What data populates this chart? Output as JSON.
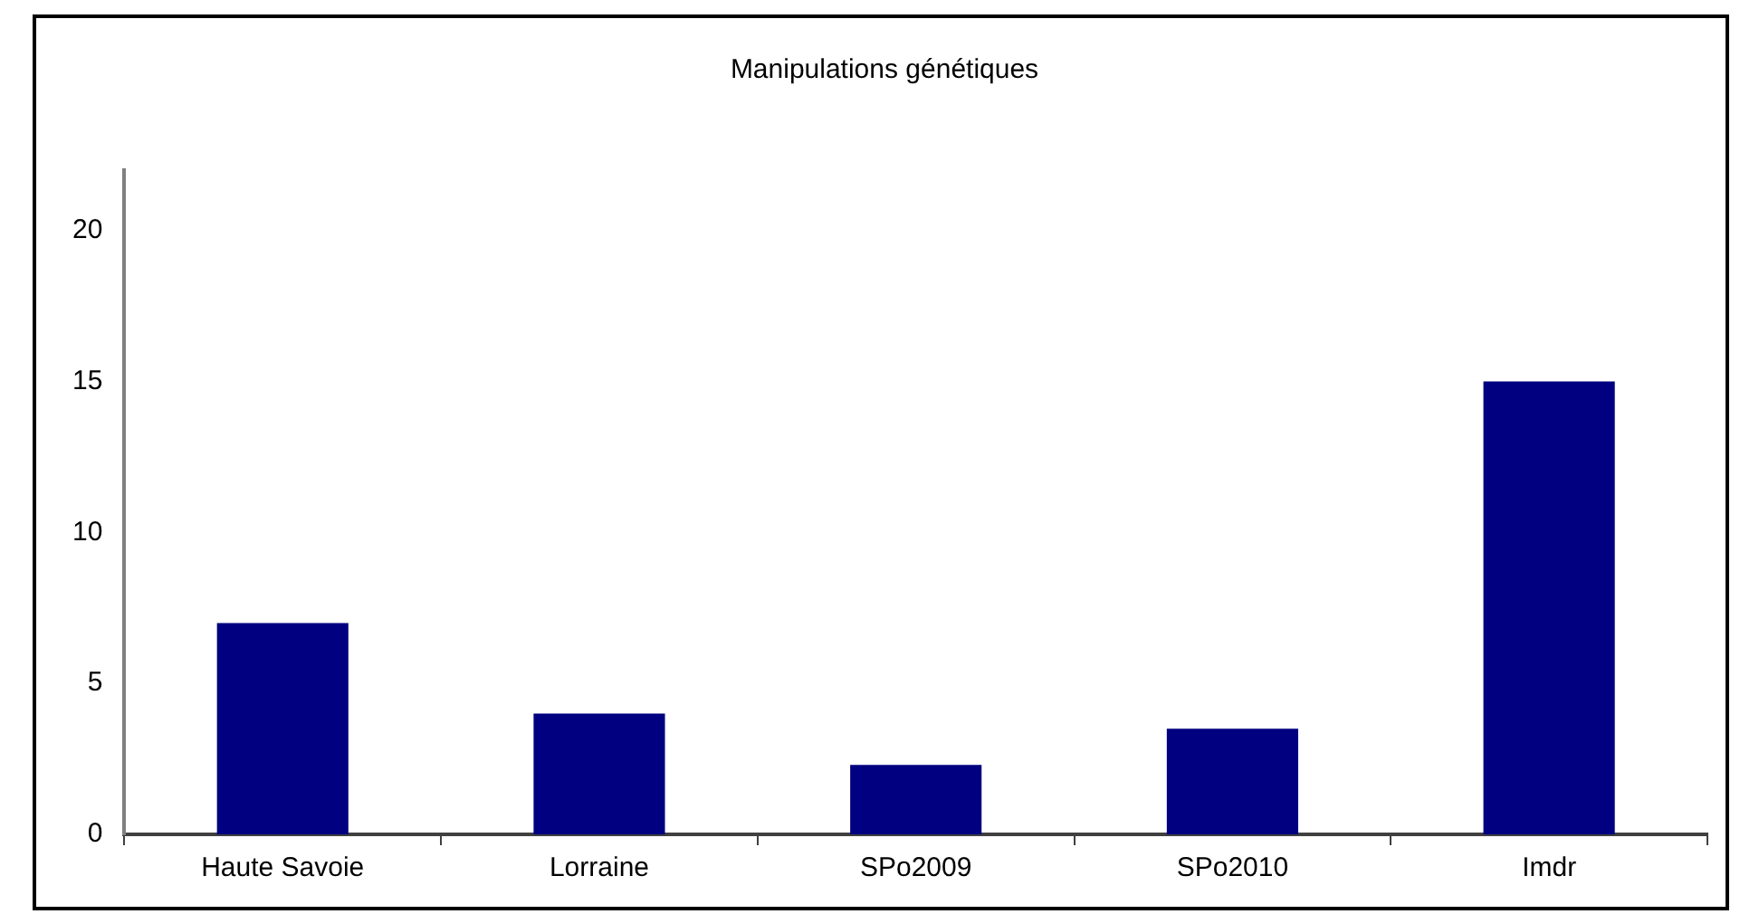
{
  "chart_data": {
    "type": "bar",
    "title": "Manipulations génétiques",
    "categories": [
      "Haute Savoie",
      "Lorraine",
      "SPo2009",
      "SPo2010",
      "Imdr"
    ],
    "values": [
      7,
      4,
      2.3,
      3.5,
      15
    ],
    "color": "#000080",
    "ylim": [
      0,
      22
    ],
    "yticks": [
      0,
      5,
      10,
      15,
      20
    ],
    "grid": false,
    "legend": false
  }
}
